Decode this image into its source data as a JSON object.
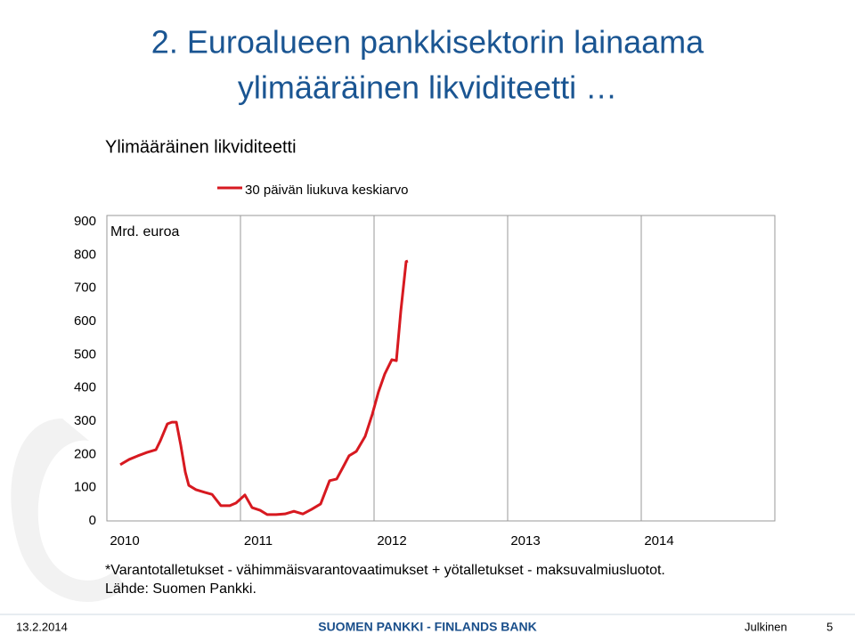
{
  "slide_title": [
    "2. Euroalueen pankkisektorin lainaama",
    "ylimääräinen likviditeetti …"
  ],
  "chart_data": {
    "type": "line",
    "title": "Ylimääräinen likviditeetti",
    "y_label": "Mrd. euroa",
    "xlim": [
      2010,
      2015
    ],
    "xticks": [
      2010,
      2011,
      2012,
      2013,
      2014
    ],
    "ylim": [
      0,
      900
    ],
    "yticks": [
      0,
      100,
      200,
      300,
      400,
      500,
      600,
      700,
      800,
      900
    ],
    "grid": "x",
    "legend": "top",
    "x": [
      2010.1,
      2010.12,
      2010.167,
      2010.233,
      2010.3,
      2010.367,
      2010.4,
      2010.453,
      2010.487,
      2010.52,
      2010.553,
      2010.587,
      2010.613,
      2010.667,
      2010.733,
      2010.787,
      2010.853,
      2010.92,
      2010.967,
      2011.033,
      2011.087,
      2011.147,
      2011.2,
      2011.267,
      2011.333,
      2011.4,
      2011.467,
      2011.533,
      2011.6,
      2011.667,
      2011.72,
      2011.767,
      2011.813,
      2011.867,
      2011.933,
      2011.987,
      2012.033,
      2012.08,
      2012.133,
      2012.167,
      2012.2,
      2012.24,
      2012.253
    ],
    "series": [
      {
        "name": "30 päivän liukuva keskiarvo",
        "color": "#d71920",
        "values": [
          169,
          174,
          185,
          196,
          206,
          214,
          241,
          292,
          297,
          297,
          228,
          147,
          107,
          94,
          86,
          80,
          46,
          46,
          54,
          78,
          40,
          32,
          19,
          19,
          21,
          29,
          21,
          35,
          51,
          121,
          126,
          161,
          196,
          209,
          254,
          321,
          388,
          442,
          485,
          482,
          630,
          780,
          782
        ]
      }
    ],
    "footnotes": [
      "*Varantotalletukset - vähimmäisvarantovaatimukset + yötalletukset - maksuvalmiusluotot.",
      "Lähde: Suomen Pankki."
    ]
  },
  "footer": {
    "date": "13.2.2014",
    "bank": "SUOMEN PANKKI - FINLANDS BANK",
    "classification": "Julkinen",
    "page": "5"
  }
}
